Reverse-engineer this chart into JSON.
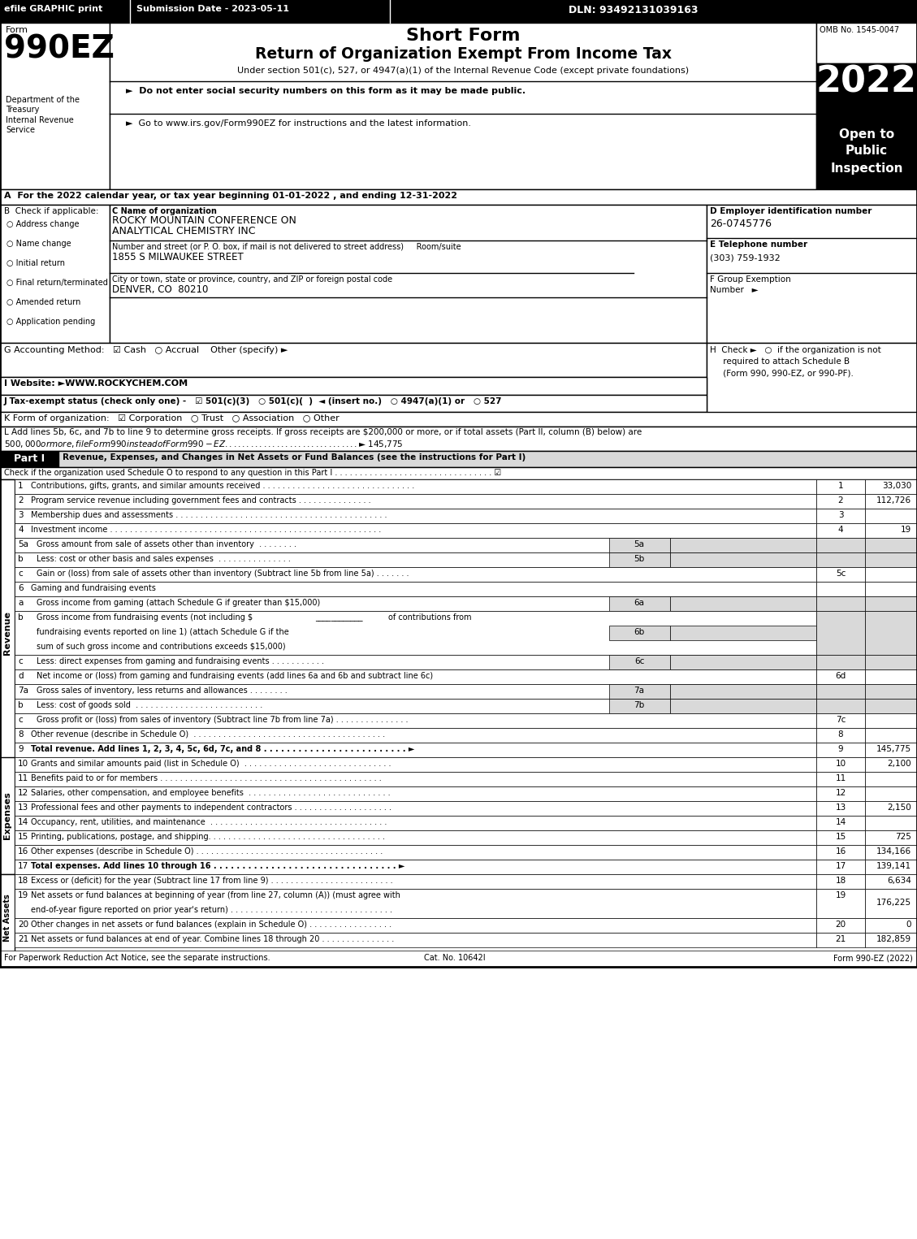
{
  "efile_text": "efile GRAPHIC print",
  "submission_date": "Submission Date - 2023-05-11",
  "dln": "DLN: 93492131039163",
  "form_number": "990EZ",
  "form_label": "Form",
  "short_form_title": "Short Form",
  "main_title": "Return of Organization Exempt From Income Tax",
  "subtitle": "Under section 501(c), 527, or 4947(a)(1) of the Internal Revenue Code (except private foundations)",
  "bullet1": "►  Do not enter social security numbers on this form as it may be made public.",
  "bullet2": "►  Go to www.irs.gov/Form990EZ for instructions and the latest information.",
  "omb": "OMB No. 1545-0047",
  "year": "2022",
  "open_to": "Open to",
  "public": "Public",
  "inspection": "Inspection",
  "dept1": "Department of the",
  "dept2": "Treasury",
  "dept3": "Internal Revenue",
  "dept4": "Service",
  "section_a": "A  For the 2022 calendar year, or tax year beginning 01-01-2022 , and ending 12-31-2022",
  "b_items": [
    "Address change",
    "Name change",
    "Initial return",
    "Final return/terminated",
    "Amended return",
    "Application pending"
  ],
  "section_c_label": "C Name of organization",
  "org_name1": "ROCKY MOUNTAIN CONFERENCE ON",
  "org_name2": "ANALYTICAL CHEMISTRY INC",
  "street_label": "Number and street (or P. O. box, if mail is not delivered to street address)     Room/suite",
  "street": "1855 S MILWAUKEE STREET",
  "city_label": "City or town, state or province, country, and ZIP or foreign postal code",
  "city": "DENVER, CO  80210",
  "section_d": "D Employer identification number",
  "ein": "26-0745776",
  "section_e": "E Telephone number",
  "phone": "(303) 759-1932",
  "section_f": "F Group Exemption",
  "section_f2": "Number   ►",
  "section_g": "G Accounting Method:   ☑ Cash   ○ Accrual    Other (specify) ►",
  "section_h_line1": "H  Check ►   ○  if the organization is not",
  "section_h_line2": "     required to attach Schedule B",
  "section_h_line3": "     (Form 990, 990-EZ, or 990-PF).",
  "section_i": "I Website: ►WWW.ROCKYCHEM.COM",
  "section_j": "J Tax-exempt status (check only one) -   ☑ 501(c)(3)   ○ 501(c)(  )  ◄ (insert no.)   ○ 4947(a)(1) or   ○ 527",
  "section_k": "K Form of organization:   ☑ Corporation   ○ Trust   ○ Association   ○ Other",
  "section_l_line1": "L Add lines 5b, 6c, and 7b to line 9 to determine gross receipts. If gross receipts are $200,000 or more, or if total assets (Part II, column (B) below) are",
  "section_l_line2": "$500,000 or more, file Form 990 instead of Form 990-EZ . . . . . . . . . . . . . . . . . . . . . . . . . . . . . . . ►$ 145,775",
  "part1_title": "Revenue, Expenses, and Changes in Net Assets or Fund Balances (see the instructions for Part I)",
  "part1_check": "Check if the organization used Schedule O to respond to any question in this Part I . . . . . . . . . . . . . . . . . . . . . . . . . . . . . . . . ☑",
  "footer1": "For Paperwork Reduction Act Notice, see the separate instructions.",
  "footer2": "Cat. No. 10642I",
  "footer3": "Form 990-EZ (2022)",
  "bg_color": "#ffffff",
  "grey": "#d9d9d9"
}
